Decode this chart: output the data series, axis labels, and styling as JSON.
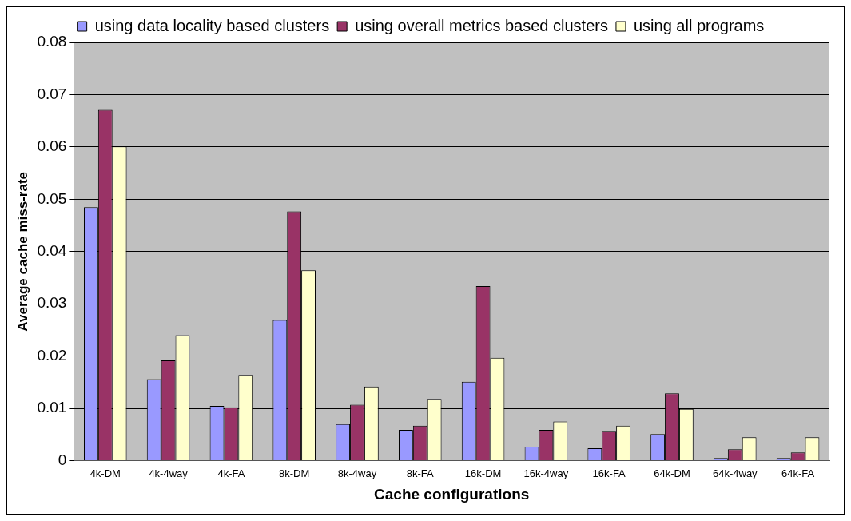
{
  "chart_data": {
    "type": "bar",
    "xlabel": "Cache configurations",
    "ylabel": "Average cache miss-rate",
    "categories": [
      "4k-DM",
      "4k-4way",
      "4k-FA",
      "8k-DM",
      "8k-4way",
      "8k-FA",
      "16k-DM",
      "16k-4way",
      "16k-FA",
      "64k-DM",
      "64k-4way",
      "64k-FA"
    ],
    "series": [
      {
        "name": "using data locality based clusters",
        "color": "#9999ff",
        "values": [
          0.0485,
          0.0156,
          0.0105,
          0.0269,
          0.007,
          0.0059,
          0.0151,
          0.0027,
          0.0024,
          0.0051,
          0.0005,
          0.0005
        ]
      },
      {
        "name": "using overall metrics based clusters",
        "color": "#993366",
        "values": [
          0.0671,
          0.0192,
          0.0102,
          0.0477,
          0.0107,
          0.0067,
          0.0334,
          0.0059,
          0.0057,
          0.0129,
          0.0022,
          0.0016
        ]
      },
      {
        "name": "using all programs",
        "color": "#ffffcc",
        "values": [
          0.0601,
          0.024,
          0.0164,
          0.0364,
          0.0142,
          0.0118,
          0.0197,
          0.0075,
          0.0067,
          0.0099,
          0.0045,
          0.0045
        ]
      }
    ],
    "ylim": [
      0,
      0.08
    ],
    "yticks": [
      0,
      0.01,
      0.02,
      0.03,
      0.04,
      0.05,
      0.06,
      0.07,
      0.08
    ],
    "grid": "y",
    "legend": "top"
  }
}
